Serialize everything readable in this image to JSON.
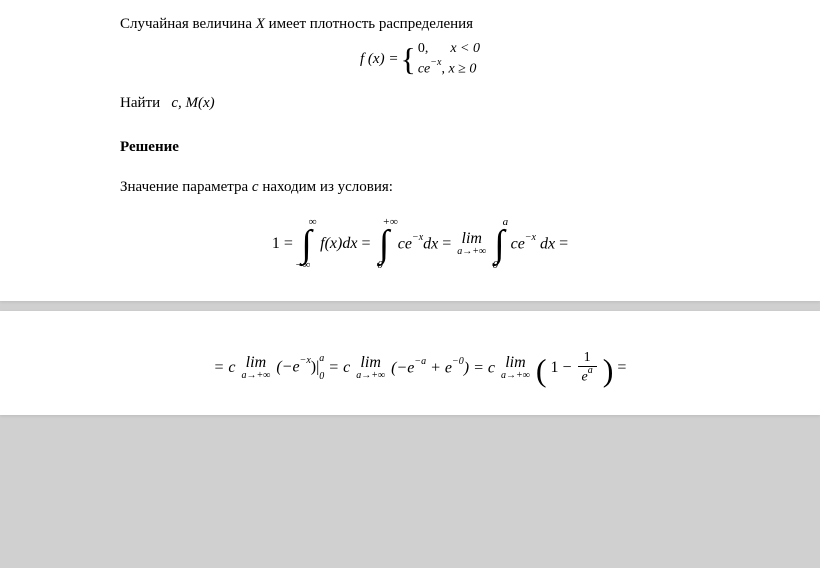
{
  "page1": {
    "intro": "Случайная величина",
    "intro_var": "X",
    "intro_end": "имеет плотность распределения",
    "fx": "f (x) =",
    "case1_left": "0,",
    "case1_right": "x < 0",
    "case2_left": "ce",
    "case2_exp": "−x",
    "case2_mid": ", ",
    "case2_right": "x ≥ 0",
    "find_label": "Найти",
    "find_vars": "c, M(x)",
    "solution": "Решение",
    "param_text_1": "Значение параметра",
    "param_var": "c",
    "param_text_2": "находим из условия:",
    "eq": {
      "one": "1 =",
      "int1_upper": "∞",
      "int1_lower": "−∞",
      "fx_dx": "f(x)dx",
      "eq_sign": "=",
      "int2_upper": "+∞",
      "int2_lower": "0",
      "ce": "ce",
      "neg_x": "−x",
      "dx": "dx",
      "lim": "lim",
      "lim_sub": "a→+∞",
      "int3_upper": "a",
      "int3_lower": "0",
      "trailing": "="
    }
  },
  "page2": {
    "eq": {
      "start": "= c",
      "lim": "lim",
      "lim_sub": "a→+∞",
      "neg_e": "(−e",
      "neg_x": "−x",
      "close": ")|",
      "bound_top": "a",
      "bound_bot": "0",
      "eq1": " = c",
      "paren2": "(−e",
      "neg_a": "−a",
      "plus": " + e",
      "neg_0": "−0",
      "close2": ") = c",
      "big_open": "(",
      "one_minus": "1 −",
      "frac_top": "1",
      "frac_bot_e": "e",
      "frac_bot_a": "a",
      "big_close": ")",
      "end": " ="
    }
  }
}
